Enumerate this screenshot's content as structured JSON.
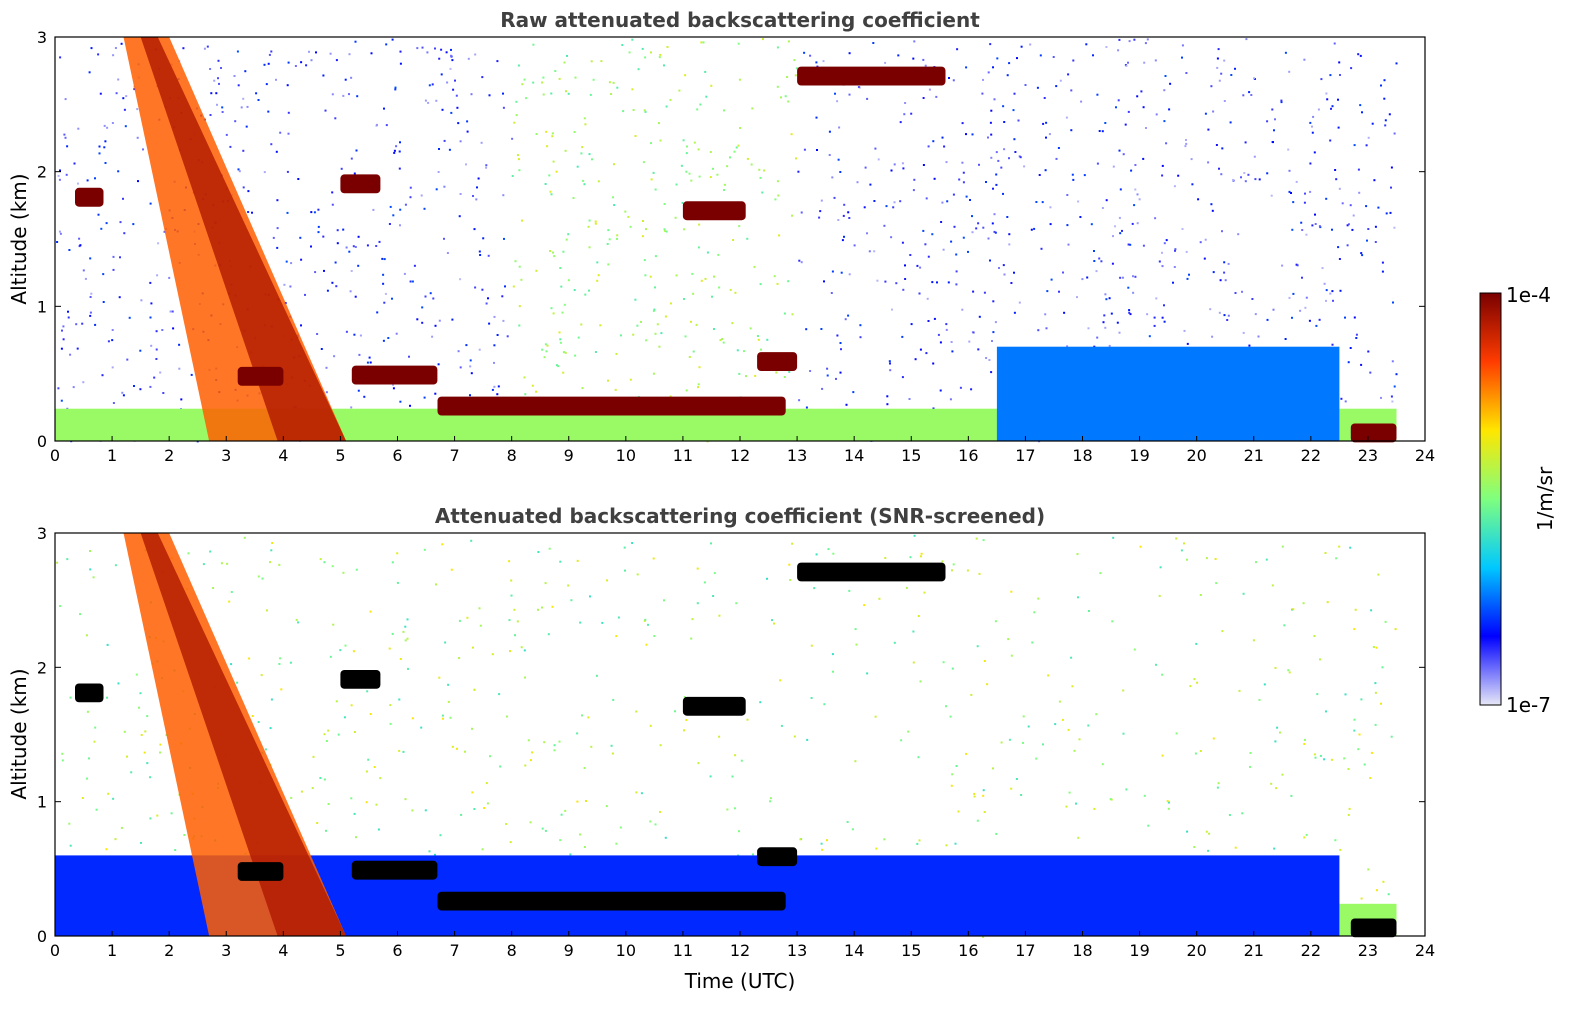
{
  "chart_data": [
    {
      "type": "heatmap",
      "title": "Raw attenuated backscattering coefficient",
      "xlabel": "",
      "ylabel": "Altitude (km)",
      "xlim": [
        0,
        24
      ],
      "ylim": [
        0,
        3
      ],
      "xticks": [
        0,
        1,
        2,
        3,
        4,
        5,
        6,
        7,
        8,
        9,
        10,
        11,
        12,
        13,
        14,
        15,
        16,
        17,
        18,
        19,
        20,
        21,
        22,
        23,
        24
      ],
      "yticks": [
        0,
        1,
        2,
        3
      ],
      "log10_scale": [
        -7,
        -4
      ],
      "noise_density": 0.28,
      "features": [
        {
          "name": "boundary-layer",
          "t0": 0.0,
          "t1": 23.5,
          "alt": 0.12,
          "log_value": -5.4
        },
        {
          "name": "residual-layer",
          "t0": 16.5,
          "t1": 22.5,
          "alt": 0.35,
          "log_value": -6.2
        },
        {
          "name": "precip-fallstreak",
          "t0": 1.5,
          "t1": 5.1,
          "alt": 1.5,
          "log_value": -4.6
        },
        {
          "name": "low-cloud-a",
          "t0": 3.2,
          "t1": 4.0,
          "alt": 0.47,
          "log_value": -4.0
        },
        {
          "name": "low-cloud-b",
          "t0": 5.2,
          "t1": 6.7,
          "alt": 0.48,
          "log_value": -4.0
        },
        {
          "name": "stratocumulus-top",
          "t0": 6.7,
          "t1": 12.8,
          "alt": 0.25,
          "log_value": -4.0
        },
        {
          "name": "cloud-1.9km",
          "t0": 5.0,
          "t1": 5.7,
          "alt": 1.9,
          "log_value": -4.0
        },
        {
          "name": "cloud-1.8km-early",
          "t0": 0.35,
          "t1": 0.85,
          "alt": 1.8,
          "log_value": -4.0
        },
        {
          "name": "cloud-1.7km",
          "t0": 11.0,
          "t1": 12.1,
          "alt": 1.7,
          "log_value": -4.0
        },
        {
          "name": "cloud-2.7km",
          "t0": 13.0,
          "t1": 15.6,
          "alt": 2.7,
          "log_value": -4.0
        },
        {
          "name": "cloud-0.6km",
          "t0": 12.3,
          "t1": 13.0,
          "alt": 0.58,
          "log_value": -4.0
        },
        {
          "name": "surface-layer-late",
          "t0": 22.7,
          "t1": 23.5,
          "alt": 0.05,
          "log_value": -4.0
        }
      ]
    },
    {
      "type": "heatmap",
      "title": "Attenuated backscattering coefficient (SNR-screened)",
      "xlabel": "Time (UTC)",
      "ylabel": "Altitude (km)",
      "xlim": [
        0,
        24
      ],
      "ylim": [
        0,
        3
      ],
      "xticks": [
        0,
        1,
        2,
        3,
        4,
        5,
        6,
        7,
        8,
        9,
        10,
        11,
        12,
        13,
        14,
        15,
        16,
        17,
        18,
        19,
        20,
        21,
        22,
        23,
        24
      ],
      "yticks": [
        0,
        1,
        2,
        3
      ],
      "log10_scale": [
        -7,
        -4
      ],
      "noise_density": 0.12,
      "features": [
        {
          "name": "boundary-layer",
          "t0": 0.0,
          "t1": 23.5,
          "alt": 0.12,
          "log_value": -5.4
        },
        {
          "name": "screened-aerosol-layer",
          "t0": 0.0,
          "t1": 22.5,
          "alt": 0.3,
          "log_value": -6.4
        },
        {
          "name": "precip-fallstreak",
          "t0": 1.5,
          "t1": 5.1,
          "alt": 1.3,
          "log_value": -4.6
        },
        {
          "name": "low-cloud-a",
          "t0": 3.2,
          "t1": 4.0,
          "alt": 0.47,
          "log_value": -3.0
        },
        {
          "name": "low-cloud-b",
          "t0": 5.2,
          "t1": 6.7,
          "alt": 0.48,
          "log_value": -3.0
        },
        {
          "name": "stratocumulus-top",
          "t0": 6.7,
          "t1": 12.8,
          "alt": 0.25,
          "log_value": -3.0
        },
        {
          "name": "cloud-1.9km",
          "t0": 5.0,
          "t1": 5.7,
          "alt": 1.9,
          "log_value": -3.0
        },
        {
          "name": "cloud-1.8km-early",
          "t0": 0.35,
          "t1": 0.85,
          "alt": 1.8,
          "log_value": -3.0
        },
        {
          "name": "cloud-1.7km",
          "t0": 11.0,
          "t1": 12.1,
          "alt": 1.7,
          "log_value": -3.0
        },
        {
          "name": "cloud-2.7km",
          "t0": 13.0,
          "t1": 15.6,
          "alt": 2.7,
          "log_value": -3.0
        },
        {
          "name": "cloud-0.6km",
          "t0": 12.3,
          "t1": 13.0,
          "alt": 0.58,
          "log_value": -3.0
        },
        {
          "name": "surface-layer-late",
          "t0": 22.7,
          "t1": 23.5,
          "alt": 0.05,
          "log_value": -3.0
        }
      ]
    }
  ],
  "colorbar": {
    "max_label": "1e-4",
    "min_label": "1e-7",
    "unit_label": "1/m/sr",
    "colors": [
      "#e8e8f8",
      "#0000ff",
      "#00c8ff",
      "#7fff7f",
      "#ffe600",
      "#ff3c00",
      "#7a0000"
    ]
  }
}
